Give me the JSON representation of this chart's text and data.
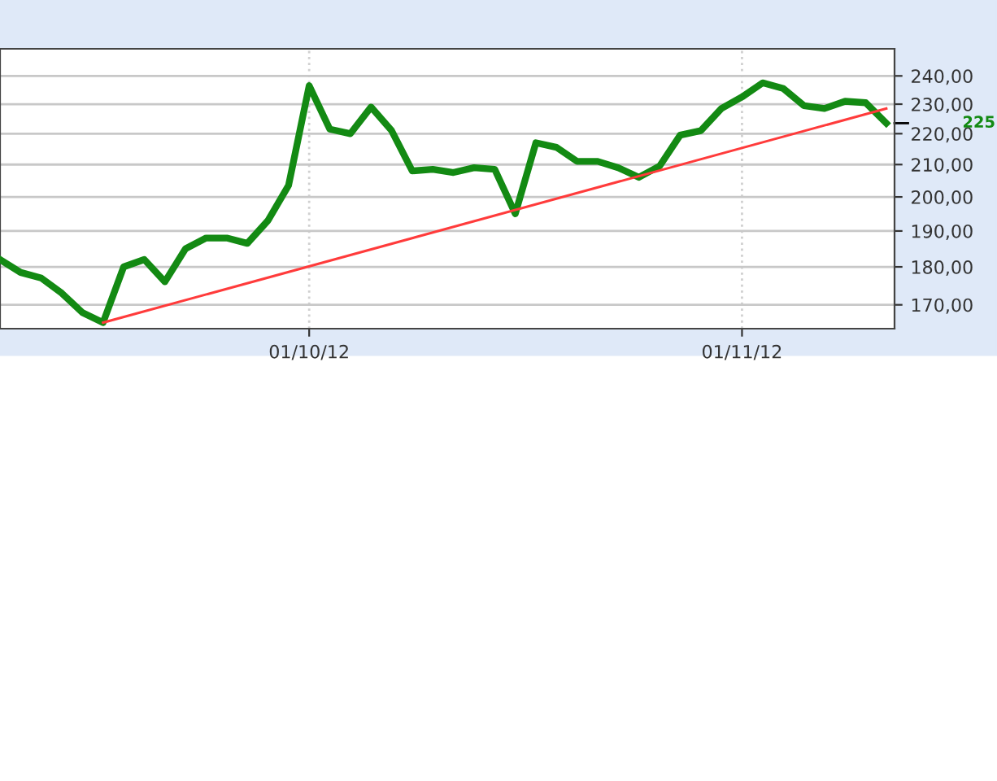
{
  "chart_data": {
    "type": "line",
    "log": "y",
    "grid": true,
    "legend": false,
    "line_style": "solid",
    "marker": "none",
    "categories": [
      null,
      null,
      null,
      null,
      null,
      null,
      null,
      null,
      null,
      null,
      null,
      null,
      null,
      null,
      null,
      "01/10/12",
      null,
      null,
      null,
      null,
      null,
      null,
      null,
      null,
      null,
      null,
      null,
      null,
      null,
      null,
      null,
      null,
      null,
      null,
      null,
      null,
      "01/11/12",
      null,
      null,
      null,
      null,
      null,
      null,
      null
    ],
    "series": [
      {
        "color": "#138a13",
        "values": [
          182,
          178.5,
          177,
          173,
          168,
          165.5,
          180,
          182,
          176,
          185,
          188,
          188,
          186.5,
          193,
          203.5,
          236.5,
          221.5,
          220,
          229,
          221,
          208,
          208.5,
          207.5,
          209,
          208.5,
          195,
          217,
          215.5,
          211,
          211,
          209,
          206,
          209.5,
          219.5,
          221,
          228.5,
          232.5,
          237.5,
          235.5,
          229.5,
          228.5,
          231,
          230.5,
          223.5
        ]
      },
      {
        "color": "#ff3b3b",
        "values": [
          null,
          null,
          null,
          null,
          null,
          165.5,
          null,
          null,
          null,
          null,
          null,
          null,
          null,
          null,
          null,
          null,
          null,
          null,
          null,
          null,
          null,
          null,
          null,
          null,
          null,
          null,
          null,
          null,
          null,
          null,
          null,
          null,
          null,
          null,
          null,
          null,
          null,
          null,
          null,
          null,
          null,
          null,
          null,
          228.5
        ]
      }
    ],
    "ylim": [
      164,
      250
    ],
    "yticks": [
      {
        "value": 170,
        "label": "170,00"
      },
      {
        "value": 180,
        "label": "180,00"
      },
      {
        "value": 190,
        "label": "190,00"
      },
      {
        "value": 200,
        "label": "200,00"
      },
      {
        "value": 210,
        "label": "210,00"
      },
      {
        "value": 220,
        "label": "220,00"
      },
      {
        "value": 230,
        "label": "230,00"
      },
      {
        "value": 240,
        "label": "240,00"
      }
    ],
    "annotations": [
      "225"
    ]
  }
}
